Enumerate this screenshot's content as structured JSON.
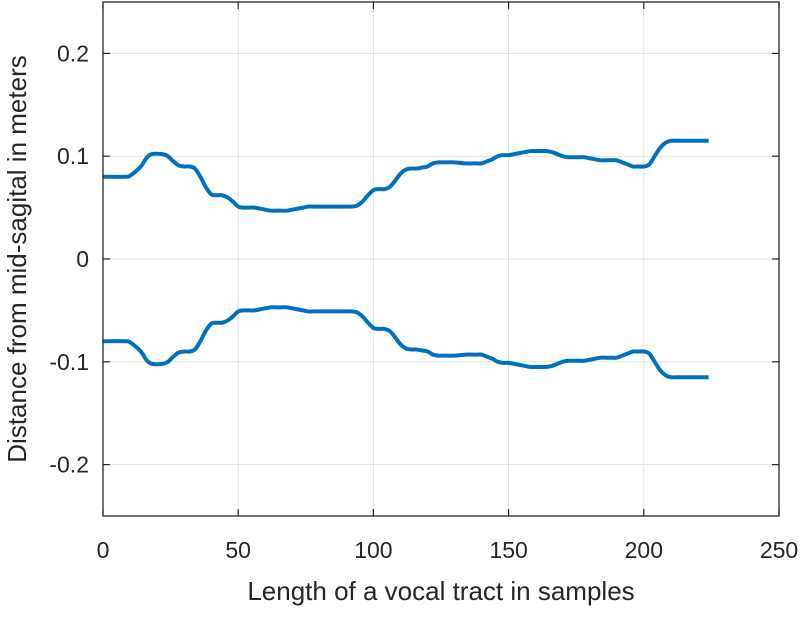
{
  "chart_data": {
    "type": "line",
    "title": "",
    "xlabel": "Length of a vocal tract in samples",
    "ylabel": "Distance from mid-sagital in meters",
    "xlim": [
      0,
      250
    ],
    "ylim": [
      -0.25,
      0.25
    ],
    "xticks": [
      0,
      50,
      100,
      150,
      200,
      250
    ],
    "yticks": [
      -0.2,
      -0.1,
      0,
      0.1,
      0.2
    ],
    "xtick_labels": [
      "0",
      "50",
      "100",
      "150",
      "200",
      "250"
    ],
    "ytick_labels": [
      "-0.2",
      "-0.1",
      "0",
      "0.1",
      "0.2"
    ],
    "grid": true,
    "line_color": "#0072BD",
    "series": [
      {
        "x": [
          0,
          8,
          10,
          14,
          16,
          18,
          22,
          24,
          26,
          28,
          30,
          32,
          34,
          36,
          38,
          40,
          42,
          44,
          46,
          48,
          50,
          52,
          54,
          56,
          58,
          60,
          62,
          64,
          66,
          68,
          70,
          72,
          74,
          76,
          78,
          80,
          84,
          88,
          90,
          92,
          94,
          96,
          98,
          100,
          102,
          104,
          106,
          108,
          110,
          112,
          114,
          116,
          118,
          120,
          122,
          124,
          126,
          130,
          134,
          138,
          140,
          142,
          144,
          146,
          148,
          150,
          152,
          154,
          156,
          158,
          160,
          162,
          164,
          166,
          168,
          170,
          172,
          176,
          178,
          180,
          182,
          184,
          186,
          188,
          190,
          192,
          194,
          196,
          198,
          200,
          202,
          204,
          206,
          208,
          210,
          212,
          216,
          220,
          224
        ],
        "values": [
          0.08,
          0.08,
          0.081,
          0.09,
          0.098,
          0.102,
          0.102,
          0.1,
          0.095,
          0.091,
          0.09,
          0.09,
          0.088,
          0.08,
          0.07,
          0.063,
          0.062,
          0.062,
          0.06,
          0.056,
          0.051,
          0.05,
          0.05,
          0.05,
          0.049,
          0.048,
          0.047,
          0.047,
          0.047,
          0.047,
          0.048,
          0.049,
          0.05,
          0.051,
          0.051,
          0.051,
          0.051,
          0.051,
          0.051,
          0.051,
          0.052,
          0.056,
          0.062,
          0.067,
          0.068,
          0.068,
          0.07,
          0.076,
          0.083,
          0.087,
          0.088,
          0.088,
          0.089,
          0.09,
          0.093,
          0.094,
          0.094,
          0.094,
          0.093,
          0.093,
          0.093,
          0.095,
          0.097,
          0.1,
          0.101,
          0.101,
          0.102,
          0.103,
          0.104,
          0.105,
          0.105,
          0.105,
          0.105,
          0.104,
          0.102,
          0.1,
          0.099,
          0.099,
          0.099,
          0.098,
          0.097,
          0.096,
          0.096,
          0.096,
          0.096,
          0.094,
          0.092,
          0.09,
          0.09,
          0.09,
          0.092,
          0.1,
          0.108,
          0.113,
          0.115,
          0.115,
          0.115,
          0.115,
          0.115
        ]
      },
      {
        "x": [
          0,
          8,
          10,
          14,
          16,
          18,
          22,
          24,
          26,
          28,
          30,
          32,
          34,
          36,
          38,
          40,
          42,
          44,
          46,
          48,
          50,
          52,
          54,
          56,
          58,
          60,
          62,
          64,
          66,
          68,
          70,
          72,
          74,
          76,
          78,
          80,
          84,
          88,
          90,
          92,
          94,
          96,
          98,
          100,
          102,
          104,
          106,
          108,
          110,
          112,
          114,
          116,
          118,
          120,
          122,
          124,
          126,
          130,
          134,
          138,
          140,
          142,
          144,
          146,
          148,
          150,
          152,
          154,
          156,
          158,
          160,
          162,
          164,
          166,
          168,
          170,
          172,
          176,
          178,
          180,
          182,
          184,
          186,
          188,
          190,
          192,
          194,
          196,
          198,
          200,
          202,
          204,
          206,
          208,
          210,
          212,
          216,
          220,
          224
        ],
        "values": [
          -0.08,
          -0.08,
          -0.081,
          -0.09,
          -0.098,
          -0.102,
          -0.102,
          -0.1,
          -0.095,
          -0.091,
          -0.09,
          -0.09,
          -0.088,
          -0.08,
          -0.07,
          -0.063,
          -0.062,
          -0.062,
          -0.06,
          -0.056,
          -0.051,
          -0.05,
          -0.05,
          -0.05,
          -0.049,
          -0.048,
          -0.047,
          -0.047,
          -0.047,
          -0.047,
          -0.048,
          -0.049,
          -0.05,
          -0.051,
          -0.051,
          -0.051,
          -0.051,
          -0.051,
          -0.051,
          -0.051,
          -0.052,
          -0.056,
          -0.062,
          -0.067,
          -0.068,
          -0.068,
          -0.07,
          -0.076,
          -0.083,
          -0.087,
          -0.088,
          -0.088,
          -0.089,
          -0.09,
          -0.093,
          -0.094,
          -0.094,
          -0.094,
          -0.093,
          -0.093,
          -0.093,
          -0.095,
          -0.097,
          -0.1,
          -0.101,
          -0.101,
          -0.102,
          -0.103,
          -0.104,
          -0.105,
          -0.105,
          -0.105,
          -0.105,
          -0.104,
          -0.102,
          -0.1,
          -0.099,
          -0.099,
          -0.099,
          -0.098,
          -0.097,
          -0.096,
          -0.096,
          -0.096,
          -0.096,
          -0.094,
          -0.092,
          -0.09,
          -0.09,
          -0.09,
          -0.092,
          -0.1,
          -0.108,
          -0.113,
          -0.115,
          -0.115,
          -0.115,
          -0.115,
          -0.115
        ]
      }
    ]
  }
}
